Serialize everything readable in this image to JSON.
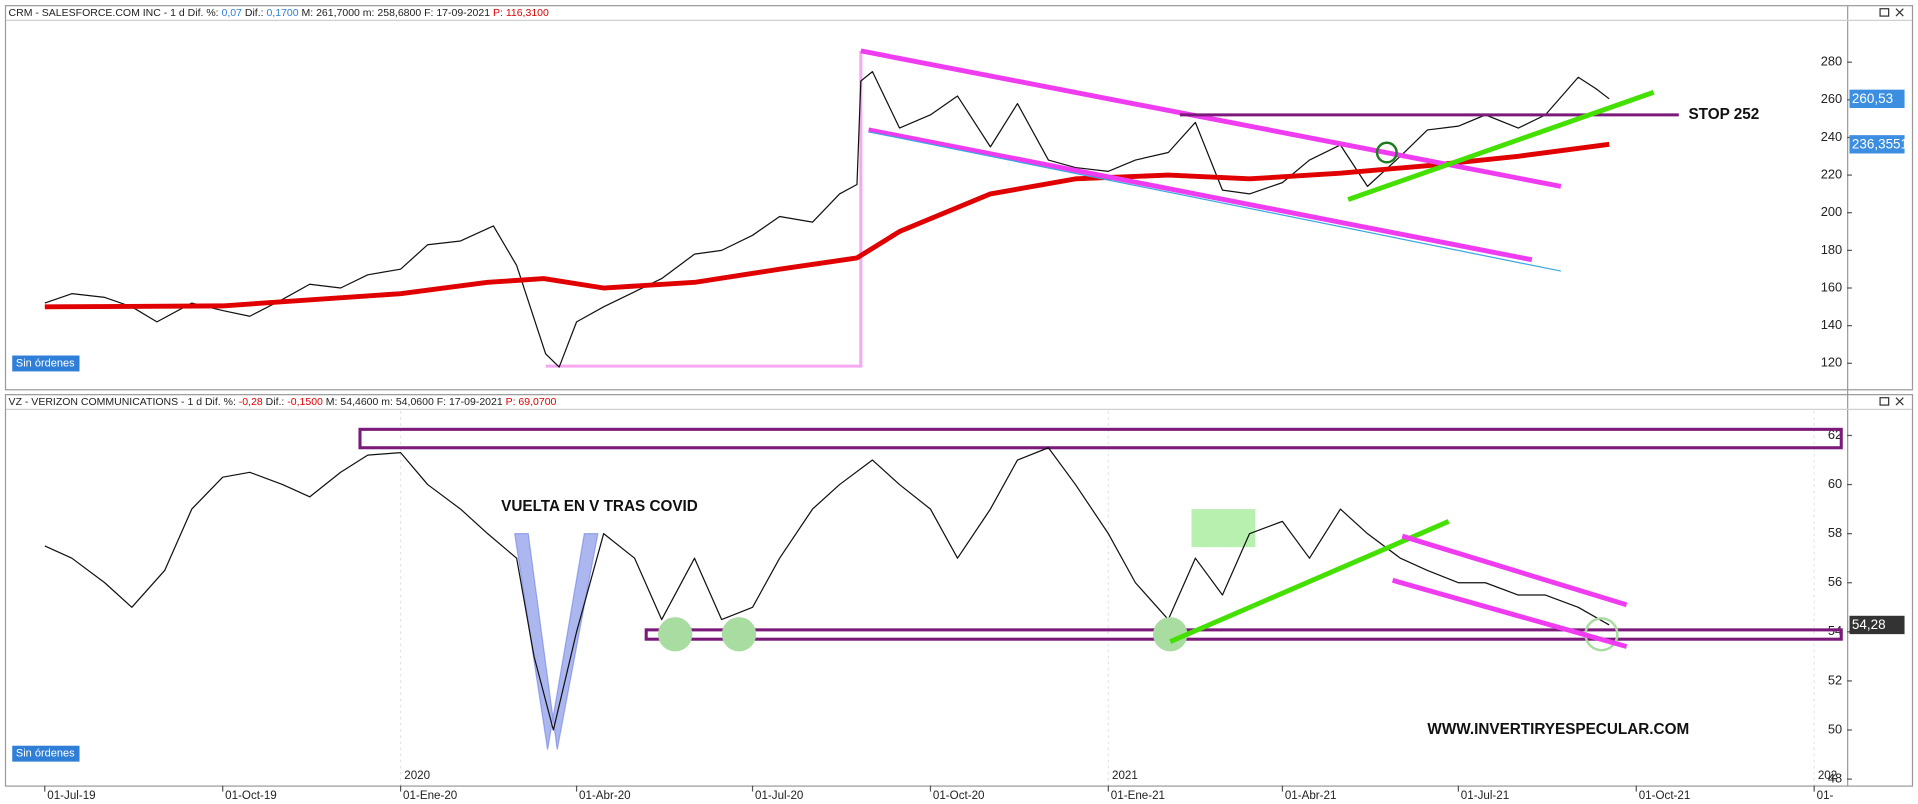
{
  "chart_data": [
    {
      "type": "line",
      "header": [
        {
          "text": "CRM - SALESFORCE.COM INC -  1 d  Dif. %: "
        },
        {
          "text": "0,07",
          "color": "#2f7fd8"
        },
        {
          "text": "  Dif.: "
        },
        {
          "text": "0,1700",
          "color": "#2f7fd8"
        },
        {
          "text": "  M: 261,7000  m: 258,6800  F: 17-09-2021  "
        },
        {
          "text": "P: 116,3100",
          "color": "#e00000"
        }
      ],
      "status": "Sin órdenes",
      "xlim": [
        "2019-06-11",
        "2022-01-18"
      ],
      "ylim": [
        106.25,
        301.9
      ],
      "yticks": [
        120,
        140,
        160,
        180,
        200,
        220,
        240,
        260,
        280
      ],
      "grid": false,
      "series": [
        {
          "name": "CRM",
          "color": "#111111",
          "weight": "thin",
          "last_label": "260,53",
          "label_bg": "#3c8fe0",
          "x": [
            "2019-07-01",
            "2019-07-15",
            "2019-08-01",
            "2019-08-15",
            "2019-08-28",
            "2019-09-15",
            "2019-10-01",
            "2019-10-15",
            "2019-11-01",
            "2019-11-15",
            "2019-12-01",
            "2019-12-15",
            "2020-01-01",
            "2020-01-15",
            "2020-02-01",
            "2020-02-18",
            "2020-03-01",
            "2020-03-16",
            "2020-03-23",
            "2020-04-01",
            "2020-04-15",
            "2020-05-01",
            "2020-05-15",
            "2020-06-01",
            "2020-06-15",
            "2020-07-01",
            "2020-07-15",
            "2020-08-01",
            "2020-08-15",
            "2020-08-24",
            "2020-08-26",
            "2020-09-01",
            "2020-09-15",
            "2020-10-01",
            "2020-10-15",
            "2020-11-01",
            "2020-11-15",
            "2020-12-01",
            "2020-12-15",
            "2021-01-01",
            "2021-01-15",
            "2021-02-01",
            "2021-02-15",
            "2021-03-01",
            "2021-03-15",
            "2021-04-01",
            "2021-04-15",
            "2021-05-01",
            "2021-05-15",
            "2021-06-01",
            "2021-06-15",
            "2021-07-01",
            "2021-07-15",
            "2021-08-01",
            "2021-08-15",
            "2021-09-01",
            "2021-09-10",
            "2021-09-17"
          ],
          "values": [
            152,
            157,
            155,
            150,
            142,
            152,
            148,
            145,
            154,
            162,
            160,
            167,
            170,
            183,
            185,
            193,
            172,
            125,
            118,
            142,
            150,
            158,
            165,
            178,
            180,
            188,
            198,
            195,
            210,
            215,
            270,
            275,
            245,
            252,
            262,
            235,
            258,
            228,
            224,
            222,
            228,
            232,
            248,
            212,
            210,
            216,
            228,
            236,
            214,
            230,
            244,
            246,
            252,
            245,
            252,
            272,
            266,
            260.53
          ]
        },
        {
          "name": "MA",
          "color": "#e00000",
          "weight": "thick",
          "last_label": "236,3551",
          "label_bg": "#3c8fe0",
          "x": [
            "2019-07-01",
            "2019-10-01",
            "2020-01-01",
            "2020-02-15",
            "2020-03-15",
            "2020-04-15",
            "2020-06-01",
            "2020-07-15",
            "2020-08-24",
            "2020-09-15",
            "2020-11-01",
            "2020-12-15",
            "2021-02-01",
            "2021-03-15",
            "2021-05-01",
            "2021-06-15",
            "2021-08-01",
            "2021-09-17"
          ],
          "values": [
            150,
            150.5,
            157,
            163,
            165,
            160,
            163,
            170,
            176,
            190,
            210,
            218,
            220,
            218,
            221,
            225,
            230,
            236.3551
          ]
        }
      ],
      "drawings": [
        {
          "kind": "polyline",
          "color": "#f7a8f2",
          "weight": "medium",
          "points": [
            [
              "2020-08-26",
              286
            ],
            [
              "2020-08-26",
              118.5
            ],
            [
              "2020-03-16",
              118.5
            ]
          ]
        },
        {
          "kind": "line",
          "color": "#f03cf0",
          "weight": "thick",
          "points": [
            [
              "2020-08-26",
              286
            ],
            [
              "2021-08-23",
              214
            ]
          ]
        },
        {
          "kind": "line",
          "color": "#f03cf0",
          "weight": "thick",
          "points": [
            [
              "2020-08-30",
              244
            ],
            [
              "2021-08-08",
              175
            ]
          ]
        },
        {
          "kind": "line",
          "color": "#3aa8e0",
          "weight": "thin",
          "points": [
            [
              "2020-08-30",
              243
            ],
            [
              "2021-08-23",
              169
            ]
          ]
        },
        {
          "kind": "line",
          "color": "#7b1a7b",
          "weight": "medium",
          "points": [
            [
              "2021-02-07",
              252
            ],
            [
              "2021-10-23",
              252
            ]
          ]
        },
        {
          "kind": "line",
          "color": "#44e000",
          "weight": "thick",
          "points": [
            [
              "2021-05-05",
              207
            ],
            [
              "2021-10-10",
              264
            ]
          ]
        },
        {
          "kind": "circle",
          "color": "#1f7a1f",
          "style": "outline",
          "points": [
            [
              "2021-05-25",
              232
            ]
          ]
        }
      ],
      "annotations": [
        {
          "text": "STOP 252",
          "points": [
            [
              "2021-10-28",
              252
            ]
          ]
        }
      ]
    },
    {
      "type": "line",
      "header": [
        {
          "text": "VZ - VERIZON COMMUNICATIONS -  1 d  Dif. %: "
        },
        {
          "text": "-0,28",
          "color": "#e00000"
        },
        {
          "text": "  Dif.: "
        },
        {
          "text": "-0,1500",
          "color": "#e00000"
        },
        {
          "text": "  M: 54,4600  m: 54,0600  F: 17-09-2021  "
        },
        {
          "text": "P: 69,0700",
          "color": "#e00000"
        }
      ],
      "status": "Sin órdenes",
      "xlim": [
        "2019-06-11",
        "2022-01-18"
      ],
      "ylim": [
        47.74,
        62.99
      ],
      "yticks": [
        48,
        50,
        52,
        54,
        56,
        58,
        60,
        62
      ],
      "grid": false,
      "xticks": [
        {
          "value": "2019-07-01",
          "label": "01-Jul-19"
        },
        {
          "value": "2019-10-01",
          "label": "01-Oct-19"
        },
        {
          "value": "2020-01-01",
          "label": "01-Ene-20"
        },
        {
          "value": "2020-04-01",
          "label": "01-Abr-20"
        },
        {
          "value": "2020-07-01",
          "label": "01-Jul-20"
        },
        {
          "value": "2020-10-01",
          "label": "01-Oct-20"
        },
        {
          "value": "2021-01-01",
          "label": "01-Ene-21"
        },
        {
          "value": "2021-04-01",
          "label": "01-Abr-21"
        },
        {
          "value": "2021-07-01",
          "label": "01-Jul-21"
        },
        {
          "value": "2021-10-01",
          "label": "01-Oct-21"
        },
        {
          "value": "2022-01-01",
          "label": "01-"
        }
      ],
      "year_labels": [
        {
          "value": "2020-01-01",
          "label": "2020"
        },
        {
          "value": "2021-01-01",
          "label": "2021"
        },
        {
          "value": "2022-01-01",
          "label": "202"
        }
      ],
      "series": [
        {
          "name": "VZ",
          "color": "#111111",
          "weight": "thin",
          "last_label": "54,28",
          "label_bg": "#333333",
          "x": [
            "2019-07-01",
            "2019-07-15",
            "2019-08-01",
            "2019-08-15",
            "2019-09-01",
            "2019-09-15",
            "2019-10-01",
            "2019-10-15",
            "2019-11-01",
            "2019-11-15",
            "2019-12-01",
            "2019-12-15",
            "2020-01-01",
            "2020-01-15",
            "2020-02-01",
            "2020-02-15",
            "2020-03-01",
            "2020-03-10",
            "2020-03-20",
            "2020-04-01",
            "2020-04-15",
            "2020-05-01",
            "2020-05-15",
            "2020-06-01",
            "2020-06-15",
            "2020-07-01",
            "2020-07-15",
            "2020-08-01",
            "2020-08-15",
            "2020-09-01",
            "2020-09-15",
            "2020-10-01",
            "2020-10-15",
            "2020-11-01",
            "2020-11-15",
            "2020-12-01",
            "2020-12-15",
            "2021-01-01",
            "2021-01-15",
            "2021-02-01",
            "2021-02-15",
            "2021-03-01",
            "2021-03-15",
            "2021-04-01",
            "2021-04-15",
            "2021-05-01",
            "2021-05-15",
            "2021-06-01",
            "2021-06-15",
            "2021-07-01",
            "2021-07-15",
            "2021-08-01",
            "2021-08-15",
            "2021-09-01",
            "2021-09-17"
          ],
          "values": [
            57.5,
            57,
            56,
            55,
            56.5,
            59,
            60.3,
            60.5,
            60,
            59.5,
            60.5,
            61.2,
            61.3,
            60,
            59,
            58,
            57,
            53,
            50,
            54,
            58,
            57,
            54.5,
            57,
            54.5,
            55,
            57,
            59,
            60,
            61,
            60,
            59,
            57,
            59,
            61,
            61.5,
            60,
            58,
            56,
            54.5,
            57,
            55.5,
            58,
            58.5,
            57,
            59,
            58,
            57,
            56.5,
            56,
            56,
            55.5,
            55.5,
            55,
            54.28
          ]
        }
      ],
      "drawings": [
        {
          "kind": "band",
          "color": "#7b1a7b",
          "weight": "medium",
          "points": [
            [
              "2019-12-11",
              62.25
            ],
            [
              "2022-01-15",
              61.5
            ]
          ]
        },
        {
          "kind": "band",
          "color": "#7b1a7b",
          "weight": "medium",
          "points": [
            [
              "2020-05-07",
              54.08
            ],
            [
              "2022-01-15",
              53.7
            ]
          ]
        },
        {
          "kind": "rect",
          "color": "#b8f0b0",
          "points": [
            [
              "2021-02-13",
              59
            ],
            [
              "2021-03-18",
              57.45
            ]
          ]
        },
        {
          "kind": "polygon",
          "color": "#5a6fe0",
          "opacity": 0.5,
          "points": [
            [
              "2020-02-29",
              58
            ],
            [
              "2020-03-07",
              58
            ],
            [
              "2020-03-22",
              49.2
            ],
            [
              "2020-04-12",
              58
            ],
            [
              "2020-04-05",
              58
            ],
            [
              "2020-03-17",
              49.2
            ]
          ]
        },
        {
          "kind": "circle",
          "color": "#a8dca0",
          "style": "filled",
          "points": [
            [
              "2020-05-22",
              53.9
            ]
          ]
        },
        {
          "kind": "circle",
          "color": "#a8dca0",
          "style": "filled",
          "points": [
            [
              "2020-06-24",
              53.9
            ]
          ]
        },
        {
          "kind": "circle",
          "color": "#a8dca0",
          "style": "filled",
          "points": [
            [
              "2021-02-02",
              53.9
            ]
          ]
        },
        {
          "kind": "circle",
          "color": "#a8dca0",
          "style": "outline",
          "points": [
            [
              "2021-09-13",
              53.9
            ]
          ]
        },
        {
          "kind": "line",
          "color": "#44e000",
          "weight": "thick",
          "points": [
            [
              "2021-02-02",
              53.6
            ],
            [
              "2021-06-26",
              58.5
            ]
          ]
        },
        {
          "kind": "line",
          "color": "#f03cf0",
          "weight": "thick",
          "points": [
            [
              "2021-06-02",
              57.9
            ],
            [
              "2021-09-26",
              55.1
            ]
          ]
        },
        {
          "kind": "line",
          "color": "#f03cf0",
          "weight": "thick",
          "points": [
            [
              "2021-05-28",
              56.1
            ],
            [
              "2021-09-26",
              53.4
            ]
          ]
        }
      ],
      "annotations": [
        {
          "text": "VUELTA EN V TRAS COVID",
          "points": [
            [
              "2020-02-22",
              59.08
            ]
          ]
        },
        {
          "text": "WWW.INVERTIRYESPECULAR.COM",
          "points": [
            [
              "2021-06-15",
              50.0
            ]
          ]
        }
      ]
    }
  ]
}
